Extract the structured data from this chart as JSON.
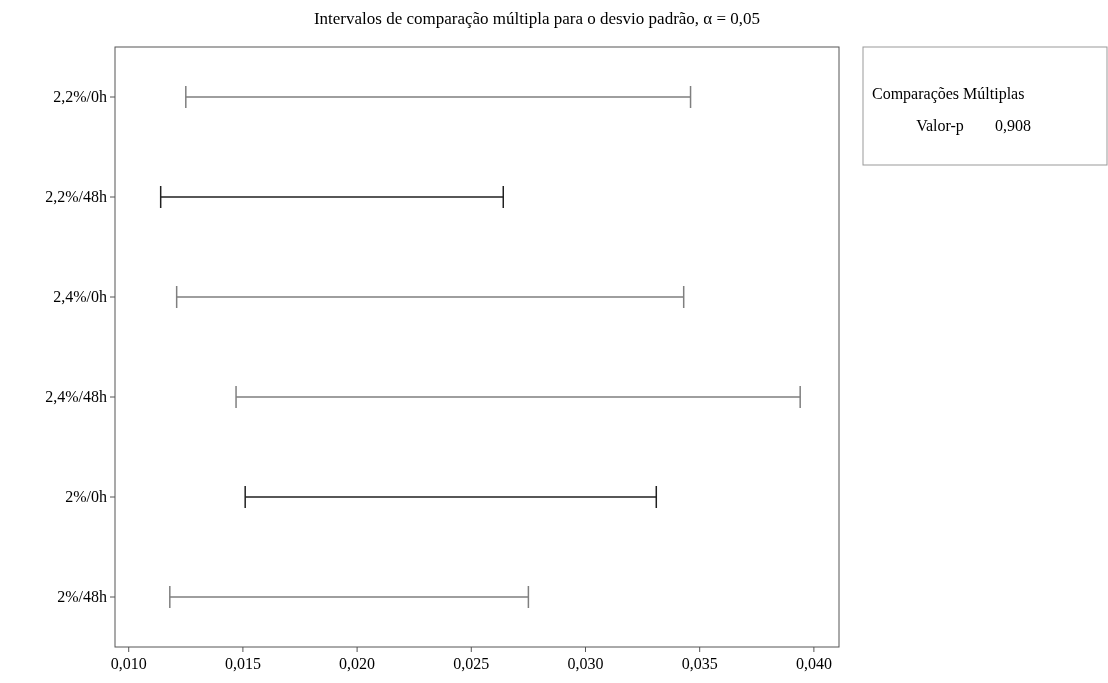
{
  "chart_data": {
    "type": "bar",
    "orientation": "horizontal",
    "title": "Intervalos de comparação múltipla para o desvio padrão, α = 0,05",
    "categories": [
      "2,2%/0h",
      "2,2%/48h",
      "2,4%/0h",
      "2,4%/48h",
      "2%/0h",
      "2%/48h"
    ],
    "base": [
      0.0125,
      0.0114,
      0.0121,
      0.0147,
      0.0151,
      0.0118
    ],
    "values": [
      0.0221,
      0.015,
      0.0222,
      0.0247,
      0.018,
      0.0157
    ],
    "colors": [
      "#7f7f7f",
      "#202020",
      "#7f7f7f",
      "#7f7f7f",
      "#202020",
      "#7f7f7f"
    ],
    "xlim": [
      0.0094,
      0.0411
    ],
    "xticks": [
      {
        "value": 0.01,
        "label": "0,010"
      },
      {
        "value": 0.015,
        "label": "0,015"
      },
      {
        "value": 0.02,
        "label": "0,020"
      },
      {
        "value": 0.025,
        "label": "0,025"
      },
      {
        "value": 0.03,
        "label": "0,030"
      },
      {
        "value": 0.035,
        "label": "0,035"
      },
      {
        "value": 0.04,
        "label": "0,040"
      }
    ],
    "annotations": [
      "Comparações Múltiplas",
      "Valor-p",
      "0,908"
    ],
    "grid": false
  }
}
